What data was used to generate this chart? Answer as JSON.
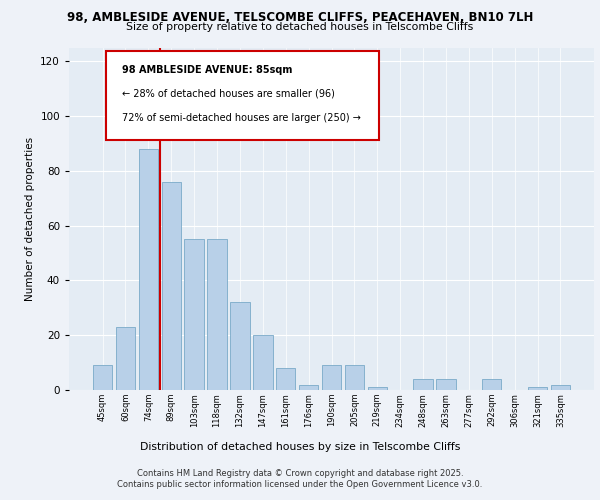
{
  "title_line1": "98, AMBLESIDE AVENUE, TELSCOMBE CLIFFS, PEACEHAVEN, BN10 7LH",
  "title_line2": "Size of property relative to detached houses in Telscombe Cliffs",
  "xlabel": "Distribution of detached houses by size in Telscombe Cliffs",
  "ylabel": "Number of detached properties",
  "categories": [
    "45sqm",
    "60sqm",
    "74sqm",
    "89sqm",
    "103sqm",
    "118sqm",
    "132sqm",
    "147sqm",
    "161sqm",
    "176sqm",
    "190sqm",
    "205sqm",
    "219sqm",
    "234sqm",
    "248sqm",
    "263sqm",
    "277sqm",
    "292sqm",
    "306sqm",
    "321sqm",
    "335sqm"
  ],
  "values": [
    9,
    23,
    88,
    76,
    55,
    55,
    32,
    20,
    8,
    2,
    9,
    9,
    1,
    0,
    4,
    4,
    0,
    4,
    0,
    1,
    2
  ],
  "bar_color": "#b8d0e8",
  "bar_edge_color": "#7aaac8",
  "vline_x": 2.5,
  "vline_color": "#cc0000",
  "annotation_title": "98 AMBLESIDE AVENUE: 85sqm",
  "annotation_line1": "← 28% of detached houses are smaller (96)",
  "annotation_line2": "72% of semi-detached houses are larger (250) →",
  "annotation_box_color": "#ffffff",
  "annotation_box_edge": "#cc0000",
  "ylim": [
    0,
    125
  ],
  "yticks": [
    0,
    20,
    40,
    60,
    80,
    100,
    120
  ],
  "footer_line1": "Contains HM Land Registry data © Crown copyright and database right 2025.",
  "footer_line2": "Contains public sector information licensed under the Open Government Licence v3.0.",
  "background_color": "#eef2f8",
  "plot_background": "#e4ecf4"
}
